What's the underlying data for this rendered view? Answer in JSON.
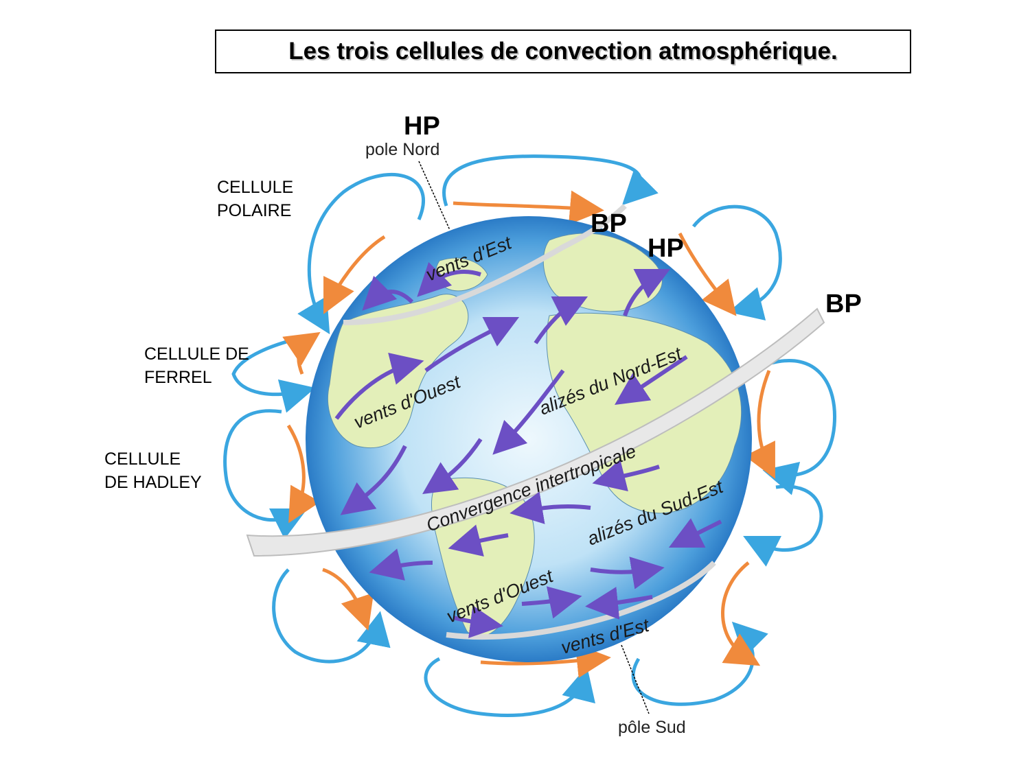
{
  "title": "Les trois cellules de convection atmosphérique.",
  "cells": {
    "polar": [
      "CELLULE",
      "POLAIRE"
    ],
    "ferrel": [
      "CELLULE DE",
      "FERREL"
    ],
    "hadley": [
      "CELLULE",
      "DE HADLEY"
    ]
  },
  "pressure": {
    "hp_north": "HP",
    "bp_north": "BP",
    "hp_mid": "HP",
    "bp_right": "BP"
  },
  "poles": {
    "north": "pole Nord",
    "south": "pôle Sud"
  },
  "globe_labels": {
    "vents_est_north": "vents  d'Est",
    "vents_ouest_north": "vents  d'Ouest",
    "alizes_nord_est": "alizés du Nord-Est",
    "convergence": "Convergence intertropicale",
    "alizes_sud_est": "alizés du Sud-Est",
    "vents_ouest_south": "vents  d'Ouest",
    "vents_est_south": "vents  d'Est"
  },
  "colors": {
    "ocean": "#3a8fd6",
    "ocean_light": "#d8eefa",
    "land": "#e3efb9",
    "cell_blue": "#3aa6e0",
    "cell_orange": "#f08a3c",
    "wind_arrow": "#6c4fc4",
    "cloud": "#e6e6e6"
  }
}
